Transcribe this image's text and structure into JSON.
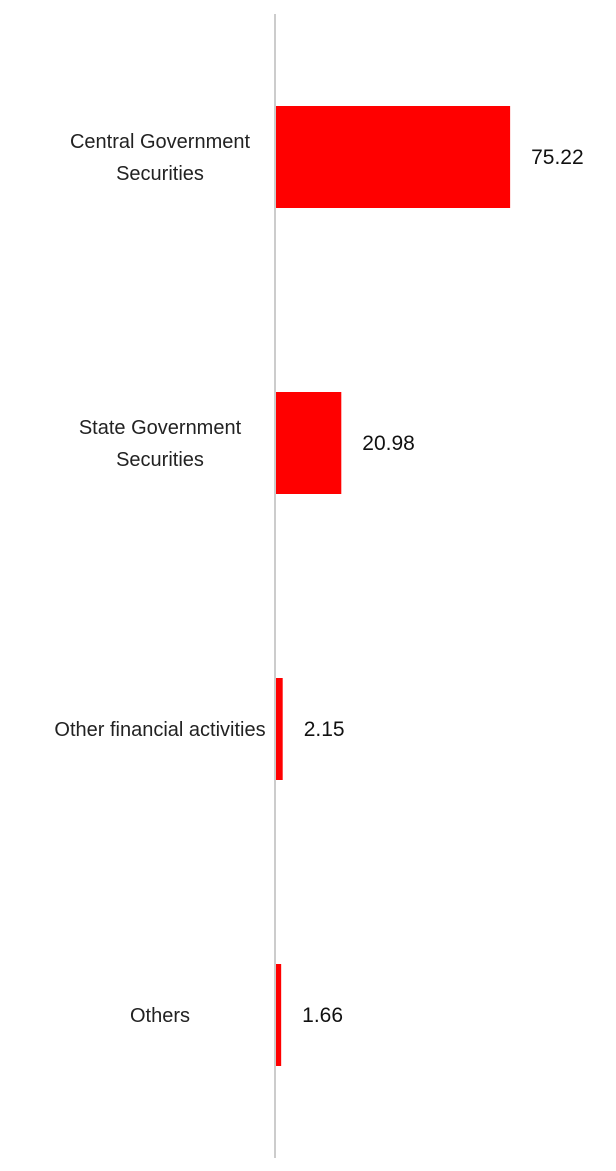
{
  "chart_data": {
    "type": "bar",
    "orientation": "horizontal",
    "categories": [
      [
        "Central Government",
        "Securities"
      ],
      [
        "State Government",
        "Securities"
      ],
      [
        "Other financial activities"
      ],
      [
        "Others"
      ]
    ],
    "values": [
      75.22,
      20.98,
      2.15,
      1.66
    ],
    "value_labels": [
      "75.22",
      "20.98",
      "2.15",
      "1.66"
    ],
    "xlim": [
      0,
      80
    ],
    "grid": false,
    "legend": "none",
    "bar_color": "#ff0000",
    "axis_color": "#cccccc"
  }
}
